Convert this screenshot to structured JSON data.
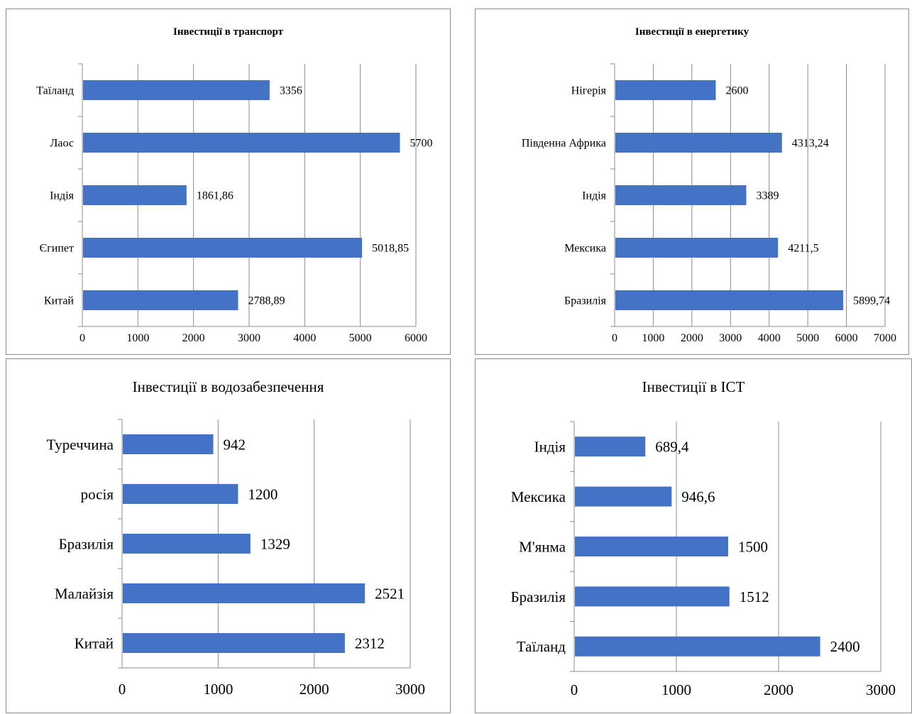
{
  "chart_data": [
    {
      "type": "bar",
      "title": "Інвестиції в транспорт",
      "categories": [
        "Таїланд",
        "Лаос",
        "Індія",
        "Єгипет",
        "Китай"
      ],
      "values": [
        3356,
        5700,
        1861.86,
        5018.85,
        2788.89
      ],
      "value_labels": [
        "3356",
        "5700",
        "1861,86",
        "5018,85",
        "2788,89"
      ],
      "xlim": [
        0,
        6000
      ],
      "x_ticks": [
        "0",
        "1000",
        "2000",
        "3000",
        "4000",
        "5000",
        "6000"
      ],
      "orientation": "horizontal",
      "grid": true,
      "bar_color": "#4472C4"
    },
    {
      "type": "bar",
      "title": "Інвестиції в енергетику",
      "categories": [
        "Нігерія",
        "Південна Африка",
        "Індія",
        "Мексика",
        "Бразилія"
      ],
      "values": [
        2600,
        4313.24,
        3389,
        4211.5,
        5899.74
      ],
      "value_labels": [
        "2600",
        "4313,24",
        "3389",
        "4211,5",
        "5899,74"
      ],
      "xlim": [
        0,
        7000
      ],
      "x_ticks": [
        "0",
        "1000",
        "2000",
        "3000",
        "4000",
        "5000",
        "6000",
        "7000"
      ],
      "orientation": "horizontal",
      "grid": true,
      "bar_color": "#4472C4"
    },
    {
      "type": "bar",
      "title": "Інвестиції в водозабезпечення",
      "categories": [
        "Туреччина",
        "росія",
        "Бразилія",
        "Малайзія",
        "Китай"
      ],
      "values": [
        942,
        1200,
        1329,
        2521,
        2312
      ],
      "value_labels": [
        "942",
        "1200",
        "1329",
        "2521",
        "2312"
      ],
      "xlim": [
        0,
        3000
      ],
      "x_ticks": [
        "0",
        "1000",
        "2000",
        "3000"
      ],
      "orientation": "horizontal",
      "grid": true,
      "bar_color": "#4472C4"
    },
    {
      "type": "bar",
      "title": "Інвестиції в ICT",
      "categories": [
        "Індія",
        "Мексика",
        "М'янма",
        "Бразилія",
        "Таїланд"
      ],
      "values": [
        689.4,
        946.6,
        1500,
        1512,
        2400
      ],
      "value_labels": [
        "689,4",
        "946,6",
        "1500",
        "1512",
        "2400"
      ],
      "xlim": [
        0,
        3000
      ],
      "x_ticks": [
        "0",
        "1000",
        "2000",
        "3000"
      ],
      "orientation": "horizontal",
      "grid": true,
      "bar_color": "#4472C4"
    }
  ]
}
